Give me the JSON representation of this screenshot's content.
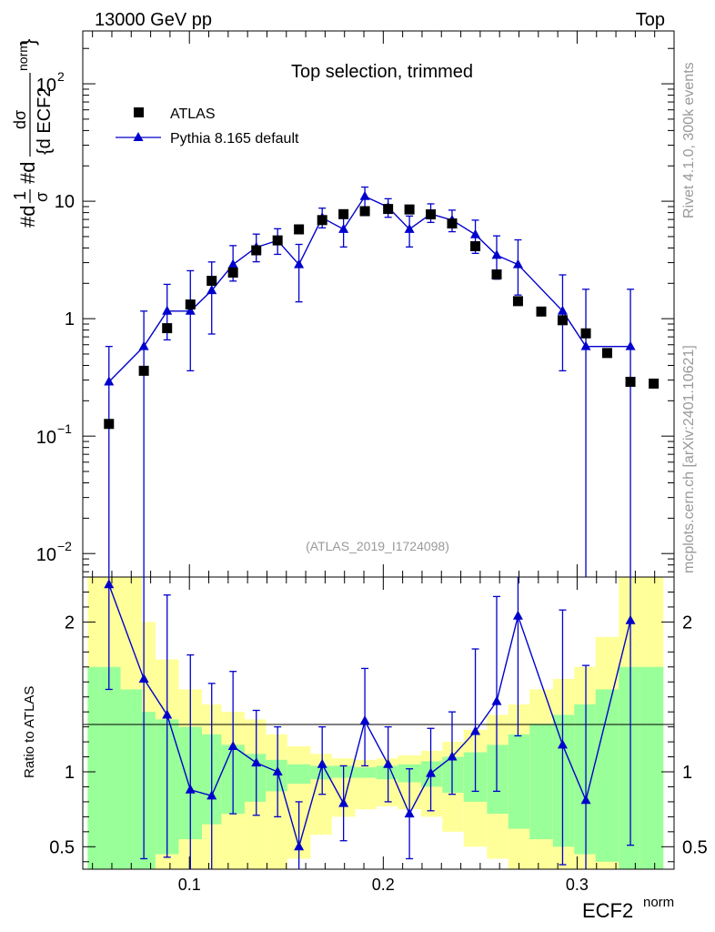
{
  "header": {
    "left": "13000 GeV pp",
    "right": "Top"
  },
  "side": {
    "version": "Rivet 4.1.0,  300k events",
    "site": "mcplots.cern.ch [arXiv:2401.10621]"
  },
  "chart_data": {
    "type": "scatter",
    "title": "Top selection, trimmed",
    "analysis": "(ATLAS_2019_I1724098)",
    "xlabel_main": "ECF2",
    "xlabel_sup": "norm",
    "ylabel": {
      "pre": "#d",
      "frac1_num": "1",
      "frac1_den": "σ",
      "mid": "#d",
      "frac2_num": "dσ",
      "frac2_den": "{d ECF2",
      "sup": "norm",
      "close": "}"
    },
    "ratio_ylabel": "Ratio to ATLAS",
    "xlim": [
      0.045,
      0.35
    ],
    "xticks": [
      0.1,
      0.2,
      0.3
    ],
    "xtick_labels": [
      "0.1",
      "0.2",
      "0.3"
    ],
    "main_ylim_log10": [
      -2.2,
      2.45
    ],
    "main_yticks": [
      {
        "base": "10",
        "exp": "−2",
        "log": -2
      },
      {
        "base": "10",
        "exp": "−1",
        "log": -1
      },
      {
        "base": "1",
        "exp": "",
        "log": 0
      },
      {
        "base": "10",
        "exp": "",
        "log": 1
      },
      {
        "base": "10",
        "exp": "2",
        "log": 2
      }
    ],
    "ratio_ylim": [
      0.35,
      2.3
    ],
    "ratio_yticks": [
      0.5,
      1,
      2
    ],
    "ratio_ytick_labels": [
      "0.5",
      "1",
      "2"
    ],
    "series": [
      {
        "name": "ATLAS",
        "color": "#000000",
        "marker": "square",
        "x": [
          0.0585,
          0.0765,
          0.0885,
          0.1005,
          0.1115,
          0.1225,
          0.1345,
          0.1455,
          0.1565,
          0.1685,
          0.1795,
          0.1905,
          0.2025,
          0.2135,
          0.2245,
          0.2355,
          0.2475,
          0.2585,
          0.2695,
          0.2815,
          0.2925,
          0.3045,
          0.3155,
          0.3275,
          0.3395
        ],
        "y": [
          0.127,
          0.36,
          0.83,
          1.32,
          2.1,
          2.47,
          3.82,
          4.64,
          5.76,
          6.91,
          7.76,
          8.23,
          8.59,
          8.51,
          7.73,
          6.47,
          4.14,
          2.38,
          1.41,
          1.15,
          0.97,
          0.75,
          0.51,
          0.29,
          0.28
        ]
      },
      {
        "name": "Pythia 8.165 default",
        "color": "#0000cc",
        "marker": "triangle",
        "x": [
          0.0585,
          0.0765,
          0.0885,
          0.1005,
          0.1115,
          0.1225,
          0.1345,
          0.1455,
          0.1565,
          0.1685,
          0.1795,
          0.1905,
          0.2025,
          0.2135,
          0.2245,
          0.2355,
          0.2475,
          0.2585,
          0.2695,
          0.2925,
          0.3045,
          0.3275
        ],
        "y": [
          0.29,
          0.58,
          1.16,
          1.16,
          1.74,
          2.89,
          4.05,
          4.63,
          2.89,
          7.23,
          5.78,
          11.0,
          8.9,
          5.78,
          7.8,
          6.9,
          5.2,
          3.47,
          2.89,
          1.16,
          0.58,
          0.58
        ],
        "yerr_down": [
          0.29,
          0.58,
          0.5,
          0.8,
          1.0,
          0.8,
          1.0,
          1.1,
          1.5,
          1.3,
          1.7,
          2.2,
          1.6,
          1.7,
          1.2,
          1.4,
          1.6,
          1.3,
          1.3,
          0.8,
          0.58,
          0.58
        ],
        "yerr_up": [
          0.29,
          0.58,
          0.8,
          1.4,
          1.3,
          1.3,
          1.2,
          1.2,
          1.4,
          1.5,
          1.8,
          2.2,
          1.6,
          1.7,
          1.7,
          1.5,
          1.7,
          1.6,
          1.8,
          1.2,
          1.2,
          1.2
        ],
        "ratio": [
          2.25,
          1.62,
          1.38,
          0.88,
          0.84,
          1.17,
          1.06,
          1.0,
          0.5,
          1.05,
          0.79,
          1.34,
          1.05,
          0.72,
          0.99,
          1.1,
          1.27,
          1.47,
          2.04,
          1.18,
          0.81,
          2.01
        ],
        "ratio_err_down": [
          0.7,
          1.2,
          0.95,
          0.6,
          0.55,
          0.45,
          0.35,
          0.3,
          0.25,
          0.2,
          0.25,
          0.3,
          0.25,
          0.3,
          0.25,
          0.25,
          0.4,
          0.6,
          0.8,
          0.8,
          0.81,
          1.5
        ],
        "ratio_err_up": [
          0.7,
          0.9,
          0.8,
          0.9,
          0.75,
          0.5,
          0.35,
          0.3,
          0.3,
          0.25,
          0.25,
          0.35,
          0.25,
          0.3,
          0.3,
          0.3,
          0.55,
          0.7,
          0.8,
          0.9,
          0.9,
          1.0
        ]
      }
    ],
    "bands": {
      "edges": [
        0.0475,
        0.0535,
        0.0645,
        0.0755,
        0.0825,
        0.0945,
        0.1065,
        0.1165,
        0.1285,
        0.1395,
        0.1505,
        0.1625,
        0.1735,
        0.1855,
        0.1965,
        0.2075,
        0.2195,
        0.2305,
        0.2415,
        0.2535,
        0.2645,
        0.2755,
        0.2875,
        0.2985,
        0.3095,
        0.3215,
        0.3325,
        0.3445
      ],
      "green_lo": [
        0.35,
        0.35,
        0.35,
        0.35,
        0.45,
        0.55,
        0.65,
        0.72,
        0.8,
        0.87,
        0.92,
        0.95,
        0.96,
        0.96,
        0.95,
        0.93,
        0.9,
        0.86,
        0.8,
        0.72,
        0.62,
        0.55,
        0.5,
        0.45,
        0.4,
        0.35,
        0.35
      ],
      "green_hi": [
        1.7,
        1.7,
        1.55,
        1.4,
        1.35,
        1.3,
        1.25,
        1.18,
        1.12,
        1.08,
        1.05,
        1.04,
        1.04,
        1.03,
        1.04,
        1.05,
        1.07,
        1.1,
        1.13,
        1.18,
        1.25,
        1.32,
        1.38,
        1.45,
        1.55,
        1.7,
        1.7
      ],
      "yellow_lo": [
        0.35,
        0.35,
        0.35,
        0.35,
        0.35,
        0.35,
        0.35,
        0.35,
        0.35,
        0.35,
        0.42,
        0.58,
        0.7,
        0.75,
        0.77,
        0.75,
        0.7,
        0.6,
        0.5,
        0.42,
        0.35,
        0.35,
        0.35,
        0.35,
        0.35,
        0.35,
        0.35
      ],
      "yellow_hi": [
        2.3,
        2.3,
        2.3,
        2.0,
        1.75,
        1.55,
        1.45,
        1.4,
        1.35,
        1.25,
        1.17,
        1.12,
        1.09,
        1.08,
        1.09,
        1.11,
        1.14,
        1.2,
        1.28,
        1.38,
        1.45,
        1.55,
        1.62,
        1.7,
        1.9,
        2.3,
        2.3
      ]
    }
  }
}
